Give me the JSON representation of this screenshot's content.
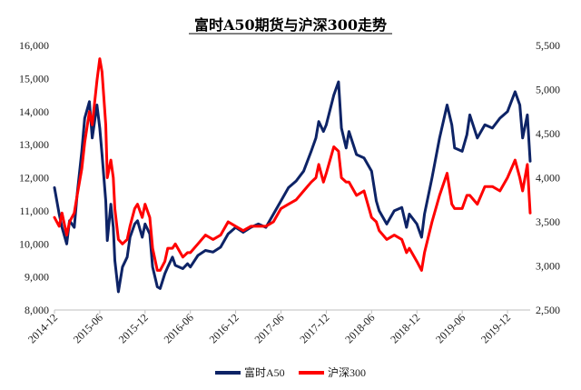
{
  "chart_data": {
    "type": "line",
    "title": "富时A50期货与沪深300走势",
    "x_ticks": [
      "2014-12",
      "2015-06",
      "2015-12",
      "2016-06",
      "2016-12",
      "2017-06",
      "2017-12",
      "2018-06",
      "2018-12",
      "2019-06",
      "2019-12"
    ],
    "x_range": [
      "2014-12",
      "2020-03"
    ],
    "y_left": {
      "ticks": [
        "8,000",
        "9,000",
        "10,000",
        "11,000",
        "12,000",
        "13,000",
        "14,000",
        "15,000",
        "16,000"
      ],
      "min": 8000,
      "max": 16000
    },
    "y_right": {
      "ticks": [
        "2,500",
        "3,000",
        "3,500",
        "4,000",
        "4,500",
        "5,000",
        "5,500"
      ],
      "min": 2500,
      "max": 5500
    },
    "grid": false,
    "legend_position": "bottom",
    "series": [
      {
        "name": "富时A50",
        "axis": "left",
        "color": "#0d2366",
        "points": [
          [
            "2014-12",
            11700
          ],
          [
            "2014-12-20",
            10900
          ],
          [
            "2015-01",
            10500
          ],
          [
            "2015-01-20",
            10000
          ],
          [
            "2015-02",
            10700
          ],
          [
            "2015-02-20",
            10500
          ],
          [
            "2015-03",
            11500
          ],
          [
            "2015-03-20",
            12800
          ],
          [
            "2015-04",
            13800
          ],
          [
            "2015-04-20",
            14300
          ],
          [
            "2015-05",
            13200
          ],
          [
            "2015-05-20",
            14200
          ],
          [
            "2015-06",
            13500
          ],
          [
            "2015-06-10",
            12700
          ],
          [
            "2015-06-25",
            11300
          ],
          [
            "2015-07",
            10100
          ],
          [
            "2015-07-15",
            11200
          ],
          [
            "2015-07-25",
            10500
          ],
          [
            "2015-08",
            9500
          ],
          [
            "2015-08-15",
            8550
          ],
          [
            "2015-09",
            9300
          ],
          [
            "2015-09-20",
            9600
          ],
          [
            "2015-10",
            10200
          ],
          [
            "2015-10-20",
            10600
          ],
          [
            "2015-11",
            10700
          ],
          [
            "2015-11-20",
            10200
          ],
          [
            "2015-12",
            10600
          ],
          [
            "2015-12-20",
            10300
          ],
          [
            "2016-01",
            9300
          ],
          [
            "2016-01-20",
            8700
          ],
          [
            "2016-02",
            8650
          ],
          [
            "2016-02-20",
            9100
          ],
          [
            "2016-03",
            9300
          ],
          [
            "2016-03-20",
            9600
          ],
          [
            "2016-04",
            9350
          ],
          [
            "2016-05",
            9250
          ],
          [
            "2016-05-20",
            9400
          ],
          [
            "2016-06",
            9300
          ],
          [
            "2016-07",
            9650
          ],
          [
            "2016-08",
            9800
          ],
          [
            "2016-09",
            9750
          ],
          [
            "2016-10",
            9900
          ],
          [
            "2016-11",
            10300
          ],
          [
            "2016-12",
            10500
          ],
          [
            "2017-01",
            10350
          ],
          [
            "2017-02",
            10500
          ],
          [
            "2017-03",
            10600
          ],
          [
            "2017-04",
            10500
          ],
          [
            "2017-05",
            10900
          ],
          [
            "2017-06",
            11300
          ],
          [
            "2017-07",
            11700
          ],
          [
            "2017-08",
            11900
          ],
          [
            "2017-09",
            12200
          ],
          [
            "2017-10",
            12800
          ],
          [
            "2017-10-20",
            13200
          ],
          [
            "2017-11",
            13700
          ],
          [
            "2017-11-20",
            13400
          ],
          [
            "2017-12",
            13600
          ],
          [
            "2018-01",
            14500
          ],
          [
            "2018-01-20",
            14900
          ],
          [
            "2018-02",
            13500
          ],
          [
            "2018-02-20",
            12900
          ],
          [
            "2018-03",
            13400
          ],
          [
            "2018-04",
            12700
          ],
          [
            "2018-05",
            12600
          ],
          [
            "2018-06",
            12200
          ],
          [
            "2018-06-20",
            11300
          ],
          [
            "2018-07",
            11000
          ],
          [
            "2018-08",
            10600
          ],
          [
            "2018-09",
            11000
          ],
          [
            "2018-10",
            11100
          ],
          [
            "2018-10-20",
            10500
          ],
          [
            "2018-11",
            10900
          ],
          [
            "2018-12",
            10600
          ],
          [
            "2018-12-20",
            10200
          ],
          [
            "2019-01",
            10900
          ],
          [
            "2019-02",
            12000
          ],
          [
            "2019-03",
            13200
          ],
          [
            "2019-04",
            14200
          ],
          [
            "2019-04-20",
            13600
          ],
          [
            "2019-05",
            12900
          ],
          [
            "2019-06",
            12800
          ],
          [
            "2019-06-20",
            13300
          ],
          [
            "2019-07",
            13900
          ],
          [
            "2019-08",
            13200
          ],
          [
            "2019-09",
            13600
          ],
          [
            "2019-10",
            13500
          ],
          [
            "2019-11",
            13800
          ],
          [
            "2019-12",
            14000
          ],
          [
            "2020-01",
            14600
          ],
          [
            "2020-01-20",
            14200
          ],
          [
            "2020-02",
            13200
          ],
          [
            "2020-02-20",
            13900
          ],
          [
            "2020-03",
            12500
          ]
        ]
      },
      {
        "name": "沪深300",
        "axis": "right",
        "color": "#ff0000",
        "points": [
          [
            "2014-12",
            3550
          ],
          [
            "2014-12-20",
            3450
          ],
          [
            "2015-01",
            3600
          ],
          [
            "2015-01-20",
            3350
          ],
          [
            "2015-02",
            3500
          ],
          [
            "2015-02-20",
            3600
          ],
          [
            "2015-03",
            3800
          ],
          [
            "2015-03-20",
            4100
          ],
          [
            "2015-04",
            4400
          ],
          [
            "2015-04-20",
            4750
          ],
          [
            "2015-05",
            4600
          ],
          [
            "2015-05-20",
            5100
          ],
          [
            "2015-06",
            5350
          ],
          [
            "2015-06-10",
            5200
          ],
          [
            "2015-06-25",
            4600
          ],
          [
            "2015-07",
            4000
          ],
          [
            "2015-07-15",
            4200
          ],
          [
            "2015-07-25",
            4000
          ],
          [
            "2015-08",
            3650
          ],
          [
            "2015-08-15",
            3300
          ],
          [
            "2015-09",
            3250
          ],
          [
            "2015-09-20",
            3300
          ],
          [
            "2015-10",
            3450
          ],
          [
            "2015-10-20",
            3650
          ],
          [
            "2015-11",
            3700
          ],
          [
            "2015-11-20",
            3550
          ],
          [
            "2015-12",
            3700
          ],
          [
            "2015-12-20",
            3550
          ],
          [
            "2016-01",
            3200
          ],
          [
            "2016-01-20",
            2950
          ],
          [
            "2016-02",
            2950
          ],
          [
            "2016-02-20",
            3050
          ],
          [
            "2016-03",
            3200
          ],
          [
            "2016-03-20",
            3200
          ],
          [
            "2016-04",
            3250
          ],
          [
            "2016-05",
            3100
          ],
          [
            "2016-05-20",
            3150
          ],
          [
            "2016-06",
            3150
          ],
          [
            "2016-07",
            3250
          ],
          [
            "2016-08",
            3350
          ],
          [
            "2016-09",
            3300
          ],
          [
            "2016-10",
            3350
          ],
          [
            "2016-11",
            3500
          ],
          [
            "2016-12",
            3450
          ],
          [
            "2017-01",
            3400
          ],
          [
            "2017-02",
            3450
          ],
          [
            "2017-03",
            3450
          ],
          [
            "2017-04",
            3450
          ],
          [
            "2017-05",
            3500
          ],
          [
            "2017-06",
            3650
          ],
          [
            "2017-07",
            3700
          ],
          [
            "2017-08",
            3750
          ],
          [
            "2017-09",
            3850
          ],
          [
            "2017-10",
            3950
          ],
          [
            "2017-10-20",
            4000
          ],
          [
            "2017-11",
            4150
          ],
          [
            "2017-11-20",
            3950
          ],
          [
            "2017-12",
            4050
          ],
          [
            "2018-01",
            4350
          ],
          [
            "2018-01-20",
            4300
          ],
          [
            "2018-02",
            4000
          ],
          [
            "2018-02-20",
            3950
          ],
          [
            "2018-03",
            3950
          ],
          [
            "2018-04",
            3800
          ],
          [
            "2018-05",
            3850
          ],
          [
            "2018-06",
            3550
          ],
          [
            "2018-06-20",
            3500
          ],
          [
            "2018-07",
            3400
          ],
          [
            "2018-08",
            3300
          ],
          [
            "2018-09",
            3350
          ],
          [
            "2018-10",
            3300
          ],
          [
            "2018-10-20",
            3150
          ],
          [
            "2018-11",
            3200
          ],
          [
            "2018-12",
            3050
          ],
          [
            "2018-12-20",
            2950
          ],
          [
            "2019-01",
            3150
          ],
          [
            "2019-02",
            3500
          ],
          [
            "2019-03",
            3800
          ],
          [
            "2019-04",
            4050
          ],
          [
            "2019-04-20",
            3700
          ],
          [
            "2019-05",
            3650
          ],
          [
            "2019-06",
            3650
          ],
          [
            "2019-06-20",
            3800
          ],
          [
            "2019-07",
            3800
          ],
          [
            "2019-08",
            3700
          ],
          [
            "2019-09",
            3900
          ],
          [
            "2019-10",
            3900
          ],
          [
            "2019-11",
            3850
          ],
          [
            "2019-12",
            4000
          ],
          [
            "2020-01",
            4200
          ],
          [
            "2020-01-20",
            4000
          ],
          [
            "2020-02",
            3850
          ],
          [
            "2020-02-20",
            4150
          ],
          [
            "2020-03",
            3600
          ]
        ]
      }
    ]
  }
}
